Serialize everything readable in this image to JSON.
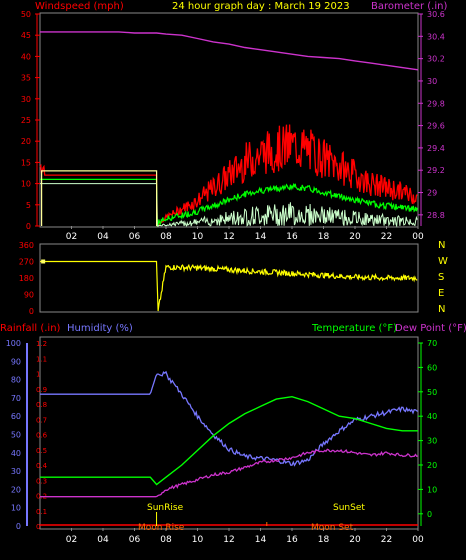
{
  "colors": {
    "windspeed": "#ff0000",
    "gust": "#ff0000",
    "avg_wind": "#00ff00",
    "wind_low": "#ccffcc",
    "barometer": "#cc33cc",
    "direction": "#ffff00",
    "rainfall": "#ff0000",
    "humidity": "#7777ff",
    "temperature": "#00ff00",
    "dewpoint": "#cc33cc",
    "sun": "#ffff00",
    "moon": "#ff6600",
    "axis": "#ffffff",
    "frame": "#888888"
  },
  "header": {
    "windspeed_label": "Windspeed (mph)",
    "title": "24 hour graph day : March 19 2023",
    "barometer_label": "Barometer (.in)"
  },
  "x_ticks": [
    "02",
    "04",
    "06",
    "08",
    "10",
    "12",
    "14",
    "16",
    "18",
    "20",
    "22",
    "00"
  ],
  "wind_chart": {
    "y_ticks": [
      "0",
      "5",
      "10",
      "15",
      "20",
      "25",
      "30",
      "35",
      "40",
      "45",
      "50"
    ],
    "baro_ticks": [
      "28.8",
      "29",
      "29.2",
      "29.4",
      "29.6",
      "29.8",
      "30",
      "30.2",
      "30.4",
      "30.6"
    ]
  },
  "dir_chart": {
    "y_ticks": [
      "0",
      "90",
      "180",
      "270",
      "360"
    ],
    "compass": [
      "N",
      "W",
      "S",
      "E",
      "N"
    ]
  },
  "bottom_chart": {
    "rainfall_label": "Rainfall (.in)",
    "humidity_label": "Humidity (%)",
    "temperature_label": "Temperature (°F)",
    "dewpoint_label": "Dew Point (°F)",
    "hum_ticks": [
      "0",
      "10",
      "20",
      "30",
      "40",
      "50",
      "60",
      "70",
      "80",
      "90",
      "100"
    ],
    "rain_ticks": [
      "0",
      "0.1",
      "0.2",
      "0.3",
      "0.4",
      "0.5",
      "0.6",
      "0.7",
      "0.8",
      "0.9",
      "1",
      "1.1",
      "1.2"
    ],
    "temp_ticks": [
      "0",
      "10",
      "20",
      "30",
      "40",
      "50",
      "60",
      "70"
    ],
    "sunrise": "SunRise",
    "sunset": "SunSet",
    "moonrise": "Moon Rise",
    "moonset": "Moon Set"
  },
  "chart_data": [
    {
      "type": "line",
      "title": "24 hour graph day : March 19 2023",
      "ylabel": "Windspeed (mph)",
      "y2label": "Barometer (.in)",
      "ylim": [
        0,
        50
      ],
      "y2lim": [
        28.7,
        30.6
      ],
      "x_hours": [
        0,
        1,
        2,
        3,
        4,
        5,
        6,
        7,
        7.4,
        8,
        9,
        10,
        11,
        12,
        13,
        14,
        15,
        16,
        17,
        18,
        19,
        20,
        21,
        22,
        23,
        24
      ],
      "series": [
        {
          "name": "Windspeed (mph)",
          "values": [
            12,
            12,
            12,
            12,
            12,
            12,
            12,
            12,
            0,
            2,
            4,
            6,
            9,
            12,
            15,
            17,
            18,
            19,
            18,
            16,
            14,
            12,
            10,
            9,
            8,
            7
          ]
        },
        {
          "name": "Barometer (.in)",
          "values": [
            30.44,
            30.44,
            30.44,
            30.44,
            30.44,
            30.44,
            30.43,
            30.43,
            30.43,
            30.42,
            30.41,
            30.38,
            30.35,
            30.33,
            30.3,
            30.28,
            30.26,
            30.24,
            30.22,
            30.21,
            30.2,
            30.18,
            30.16,
            30.14,
            30.12,
            30.1
          ]
        }
      ]
    },
    {
      "type": "line",
      "ylim": [
        0,
        360
      ],
      "x_hours": [
        0,
        7.4,
        7.5,
        8,
        10,
        12,
        14,
        16,
        18,
        20,
        22,
        24
      ],
      "series": [
        {
          "name": "direction",
          "values": [
            270,
            270,
            0,
            240,
            235,
            225,
            215,
            205,
            195,
            185,
            180,
            180
          ]
        }
      ]
    },
    {
      "type": "line",
      "ylabel": "Humidity (%)",
      "y2label": "Temperature (°F)",
      "ylim": [
        0,
        100
      ],
      "y2lim": [
        -5,
        70
      ],
      "rain_lim": [
        0,
        1.2
      ],
      "x_hours": [
        0,
        1,
        2,
        3,
        4,
        5,
        6,
        7,
        7.4,
        8,
        9,
        10,
        11,
        12,
        13,
        14,
        15,
        16,
        17,
        18,
        19,
        20,
        21,
        22,
        23,
        24
      ],
      "series": [
        {
          "name": "Humidity (%)",
          "values": [
            72,
            72,
            72,
            72,
            72,
            72,
            72,
            72,
            83,
            83,
            72,
            60,
            50,
            42,
            38,
            37,
            36,
            34,
            36,
            45,
            52,
            58,
            60,
            62,
            64,
            62
          ]
        },
        {
          "name": "Temperature (°F)",
          "values": [
            15,
            15,
            15,
            15,
            15,
            15,
            15,
            15,
            12,
            15,
            20,
            26,
            32,
            37,
            41,
            44,
            47,
            48,
            46,
            43,
            40,
            39,
            37,
            35,
            34,
            34
          ]
        },
        {
          "name": "Dew Point (°F)",
          "values": [
            7,
            7,
            7,
            7,
            7,
            7,
            7,
            7,
            7,
            10,
            12,
            14,
            16,
            17,
            19,
            21,
            22,
            23,
            25,
            26,
            26,
            25,
            24,
            25,
            24,
            24
          ]
        },
        {
          "name": "Rainfall (.in)",
          "values": [
            0,
            0,
            0,
            0,
            0,
            0,
            0,
            0,
            0,
            0,
            0,
            0,
            0,
            0,
            0,
            0,
            0,
            0,
            0,
            0,
            0,
            0,
            0,
            0,
            0,
            0
          ]
        }
      ]
    }
  ]
}
